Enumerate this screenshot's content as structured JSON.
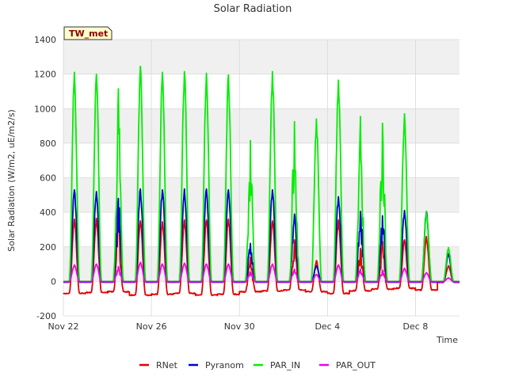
{
  "chart_data": {
    "type": "line",
    "title": "Solar Radiation",
    "xlabel": "Time",
    "ylabel": "Solar Radiation (W/m2, uE/m2/s)",
    "ylim": [
      -200,
      1400
    ],
    "xlim": [
      "2021-11-22",
      "2021-12-10"
    ],
    "yticks": [
      -200,
      0,
      200,
      400,
      600,
      800,
      1000,
      1200,
      1400
    ],
    "xticks": [
      {
        "date": "2021-11-22",
        "label": "Nov 22"
      },
      {
        "date": "2021-11-26",
        "label": "Nov 26"
      },
      {
        "date": "2021-11-30",
        "label": "Nov 30"
      },
      {
        "date": "2021-12-04",
        "label": "Dec 4"
      },
      {
        "date": "2021-12-08",
        "label": "Dec 8"
      }
    ],
    "tag": "TW_met",
    "grid": true,
    "legend_position": "bottom",
    "days": [
      "2021-11-22",
      "2021-11-23",
      "2021-11-24",
      "2021-11-25",
      "2021-11-26",
      "2021-11-27",
      "2021-11-28",
      "2021-11-29",
      "2021-11-30",
      "2021-12-01",
      "2021-12-02",
      "2021-12-03",
      "2021-12-04",
      "2021-12-05",
      "2021-12-06",
      "2021-12-07",
      "2021-12-08",
      "2021-12-09"
    ],
    "series": [
      {
        "name": "RNet",
        "color": "#e00000",
        "daily_peak": [
          360,
          365,
          340,
          350,
          345,
          355,
          355,
          360,
          140,
          350,
          240,
          120,
          355,
          190,
          230,
          240,
          260,
          90
        ],
        "night_value": [
          -70,
          -65,
          -60,
          -80,
          -75,
          -70,
          -80,
          -75,
          -60,
          -55,
          -50,
          -60,
          -70,
          -55,
          -45,
          -40,
          -50,
          -5
        ]
      },
      {
        "name": "Pyranom",
        "color": "#0000cc",
        "daily_peak": [
          530,
          520,
          480,
          535,
          530,
          535,
          535,
          530,
          220,
          530,
          390,
          90,
          490,
          405,
          380,
          410,
          405,
          160
        ],
        "night_value": [
          -5,
          -5,
          -5,
          -5,
          -5,
          -5,
          -5,
          -5,
          -5,
          -5,
          -5,
          -5,
          -5,
          -5,
          -5,
          -5,
          -5,
          -5
        ]
      },
      {
        "name": "PAR_IN",
        "color": "#00ee00",
        "daily_peak": [
          1210,
          1200,
          1115,
          1245,
          1210,
          1215,
          1205,
          1195,
          815,
          1215,
          925,
          940,
          1165,
          955,
          915,
          970,
          405,
          195
        ],
        "night_value": [
          0,
          0,
          0,
          0,
          0,
          0,
          0,
          0,
          0,
          0,
          0,
          0,
          0,
          0,
          0,
          0,
          0,
          0
        ]
      },
      {
        "name": "PAR_OUT",
        "color": "#ee00ee",
        "daily_peak": [
          95,
          100,
          85,
          110,
          100,
          105,
          100,
          100,
          55,
          100,
          70,
          40,
          95,
          70,
          65,
          75,
          50,
          20
        ],
        "night_value": [
          -2,
          -2,
          -2,
          -2,
          -2,
          -2,
          -2,
          -2,
          -2,
          -2,
          -2,
          -2,
          -2,
          -2,
          -2,
          -2,
          -2,
          -2
        ]
      }
    ]
  }
}
